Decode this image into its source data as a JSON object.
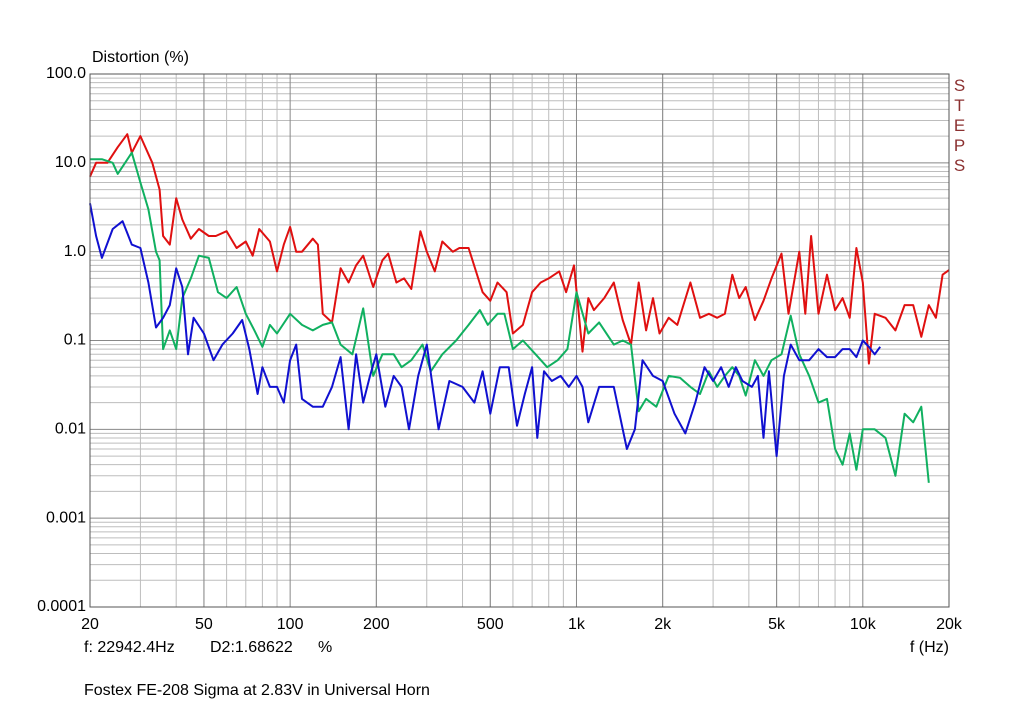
{
  "chart_data": {
    "type": "line",
    "ylabel": "Distortion (%)",
    "xlabel": "f (Hz)",
    "side_label": "STEPS",
    "cursor_freq": "f: 22942.4Hz",
    "cursor_value": "D2:1.68622",
    "cursor_unit": "%",
    "caption": "Fostex FE-208 Sigma at 2.83V in Universal Horn",
    "xscale": "log",
    "yscale": "log",
    "grid": true,
    "xlim": [
      20,
      20000
    ],
    "ylim": [
      0.0001,
      100
    ],
    "xticks": [
      20,
      50,
      100,
      200,
      500,
      {
        "value": 1000,
        "label": "1k"
      },
      {
        "value": 2000,
        "label": "2k"
      },
      {
        "value": 5000,
        "label": "5k"
      },
      {
        "value": 10000,
        "label": "10k"
      },
      {
        "value": 20000,
        "label": "20k"
      }
    ],
    "yticks": [
      0.0001,
      0.001,
      0.01,
      0.1,
      {
        "value": 1,
        "label": "1.0"
      },
      {
        "value": 10,
        "label": "10.0"
      },
      {
        "value": 100,
        "label": "100.0"
      }
    ],
    "series": [
      {
        "color": "#e01010",
        "x": [
          20,
          21,
          23,
          25,
          27,
          28,
          30,
          33,
          35,
          36,
          38,
          40,
          42,
          45,
          48,
          52,
          55,
          60,
          65,
          70,
          74,
          78,
          85,
          90,
          95,
          100,
          105,
          110,
          120,
          125,
          130,
          140,
          150,
          160,
          170,
          180,
          195,
          210,
          220,
          235,
          250,
          265,
          285,
          300,
          320,
          340,
          370,
          390,
          420,
          470,
          500,
          530,
          570,
          600,
          650,
          700,
          750,
          800,
          870,
          920,
          980,
          1050,
          1100,
          1150,
          1250,
          1350,
          1450,
          1550,
          1650,
          1750,
          1850,
          1950,
          2100,
          2250,
          2500,
          2700,
          2900,
          3100,
          3300,
          3500,
          3700,
          3900,
          4200,
          4500,
          4800,
          5200,
          5500,
          6000,
          6300,
          6600,
          7000,
          7500,
          8000,
          8500,
          9000,
          9500,
          10000,
          10500,
          11000,
          12000,
          13000,
          14000,
          15000,
          16000,
          17000,
          18000,
          19000,
          20000
        ],
        "values": [
          7,
          10,
          10,
          15,
          21,
          13,
          20,
          10,
          5,
          1.5,
          1.2,
          4,
          2.3,
          1.4,
          1.8,
          1.5,
          1.5,
          1.7,
          1.1,
          1.3,
          0.9,
          1.8,
          1.3,
          0.6,
          1.2,
          1.9,
          1.0,
          1.0,
          1.4,
          1.2,
          0.2,
          0.16,
          0.65,
          0.45,
          0.7,
          0.9,
          0.4,
          0.8,
          0.95,
          0.45,
          0.5,
          0.38,
          1.7,
          1.0,
          0.6,
          1.3,
          1.0,
          1.1,
          1.1,
          0.35,
          0.28,
          0.45,
          0.35,
          0.12,
          0.15,
          0.35,
          0.45,
          0.5,
          0.6,
          0.35,
          0.7,
          0.075,
          0.3,
          0.22,
          0.3,
          0.45,
          0.17,
          0.09,
          0.45,
          0.13,
          0.3,
          0.12,
          0.18,
          0.15,
          0.45,
          0.18,
          0.2,
          0.18,
          0.2,
          0.55,
          0.3,
          0.4,
          0.17,
          0.28,
          0.5,
          0.95,
          0.2,
          1.0,
          0.2,
          1.5,
          0.2,
          0.55,
          0.22,
          0.3,
          0.18,
          1.1,
          0.45,
          0.055,
          0.2,
          0.18,
          0.13,
          0.25,
          0.25,
          0.11,
          0.25,
          0.18,
          0.55,
          0.62
        ]
      },
      {
        "color": "#10b060",
        "x": [
          20,
          22,
          24,
          25,
          28,
          30,
          32,
          34,
          35,
          36,
          38,
          40,
          42,
          45,
          48,
          52,
          56,
          60,
          65,
          70,
          75,
          80,
          85,
          90,
          100,
          110,
          120,
          130,
          140,
          150,
          165,
          180,
          195,
          210,
          230,
          245,
          265,
          290,
          310,
          340,
          380,
          420,
          460,
          490,
          530,
          560,
          600,
          650,
          720,
          790,
          860,
          930,
          1000,
          1100,
          1200,
          1350,
          1450,
          1550,
          1650,
          1750,
          1900,
          2100,
          2300,
          2500,
          2700,
          2900,
          3100,
          3300,
          3500,
          3700,
          3900,
          4200,
          4500,
          4800,
          5200,
          5600,
          6000,
          6500,
          7000,
          7500,
          8000,
          8500,
          9000,
          9500,
          10000,
          11000,
          12000,
          13000,
          14000,
          15000,
          16000,
          17000
        ],
        "values": [
          11,
          11,
          10,
          7.5,
          13,
          6,
          3,
          1,
          0.8,
          0.08,
          0.13,
          0.08,
          0.3,
          0.5,
          0.9,
          0.85,
          0.35,
          0.3,
          0.4,
          0.2,
          0.13,
          0.085,
          0.15,
          0.12,
          0.2,
          0.15,
          0.13,
          0.15,
          0.16,
          0.09,
          0.07,
          0.23,
          0.04,
          0.07,
          0.07,
          0.05,
          0.06,
          0.09,
          0.045,
          0.07,
          0.1,
          0.15,
          0.22,
          0.15,
          0.2,
          0.2,
          0.08,
          0.1,
          0.07,
          0.05,
          0.06,
          0.08,
          0.35,
          0.12,
          0.16,
          0.09,
          0.1,
          0.09,
          0.016,
          0.022,
          0.018,
          0.04,
          0.038,
          0.03,
          0.025,
          0.045,
          0.03,
          0.04,
          0.05,
          0.04,
          0.024,
          0.06,
          0.04,
          0.06,
          0.07,
          0.19,
          0.07,
          0.04,
          0.02,
          0.022,
          0.006,
          0.004,
          0.009,
          0.0035,
          0.01,
          0.01,
          0.008,
          0.003,
          0.015,
          0.012,
          0.018,
          0.0025
        ]
      },
      {
        "color": "#1010d0",
        "x": [
          20,
          21,
          22,
          24,
          26,
          28,
          30,
          32,
          34,
          36,
          38,
          40,
          42,
          44,
          46,
          50,
          54,
          58,
          63,
          68,
          72,
          77,
          80,
          85,
          90,
          95,
          100,
          105,
          110,
          120,
          130,
          140,
          150,
          160,
          170,
          180,
          190,
          200,
          215,
          230,
          245,
          260,
          280,
          300,
          330,
          360,
          400,
          440,
          470,
          500,
          540,
          580,
          620,
          660,
          700,
          730,
          770,
          820,
          880,
          940,
          1000,
          1050,
          1100,
          1200,
          1350,
          1500,
          1600,
          1700,
          1850,
          2000,
          2200,
          2400,
          2600,
          2800,
          3000,
          3200,
          3400,
          3600,
          3800,
          4100,
          4300,
          4500,
          4700,
          5000,
          5300,
          5600,
          6000,
          6500,
          7000,
          7500,
          8000,
          8500,
          9000,
          9500,
          10000,
          10500,
          11000,
          11500
        ],
        "values": [
          3.5,
          1.5,
          0.85,
          1.8,
          2.2,
          1.2,
          1.1,
          0.45,
          0.14,
          0.18,
          0.25,
          0.65,
          0.4,
          0.07,
          0.18,
          0.12,
          0.06,
          0.09,
          0.12,
          0.17,
          0.08,
          0.025,
          0.05,
          0.03,
          0.03,
          0.02,
          0.06,
          0.09,
          0.022,
          0.018,
          0.018,
          0.03,
          0.065,
          0.01,
          0.07,
          0.02,
          0.04,
          0.07,
          0.018,
          0.04,
          0.03,
          0.01,
          0.04,
          0.09,
          0.01,
          0.035,
          0.03,
          0.02,
          0.045,
          0.015,
          0.05,
          0.05,
          0.011,
          0.025,
          0.05,
          0.008,
          0.045,
          0.035,
          0.04,
          0.03,
          0.04,
          0.03,
          0.012,
          0.03,
          0.03,
          0.006,
          0.01,
          0.06,
          0.04,
          0.035,
          0.015,
          0.009,
          0.02,
          0.05,
          0.035,
          0.05,
          0.03,
          0.05,
          0.035,
          0.03,
          0.04,
          0.008,
          0.045,
          0.005,
          0.04,
          0.09,
          0.06,
          0.06,
          0.08,
          0.065,
          0.065,
          0.08,
          0.08,
          0.065,
          0.1,
          0.085,
          0.07,
          0.085
        ]
      }
    ]
  }
}
